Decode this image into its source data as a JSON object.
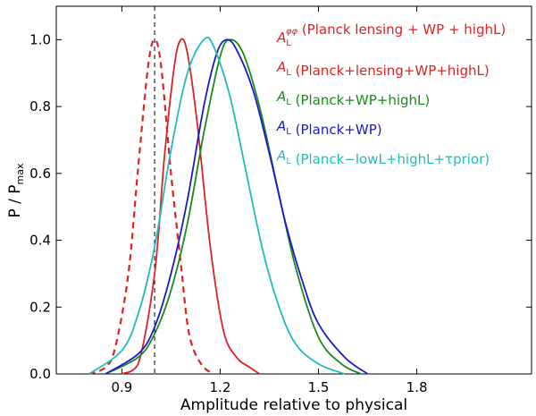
{
  "chart_data": {
    "type": "line",
    "xlabel": "Amplitude relative to physical",
    "ylabel": "P / P",
    "ylabel_sub": "max",
    "xlim": [
      0.7,
      2.15
    ],
    "ylim": [
      0.0,
      1.1
    ],
    "xticks": [
      0.9,
      1.2,
      1.5,
      1.8
    ],
    "xtick_labels": [
      "0.9",
      "1.2",
      "1.5",
      "1.8"
    ],
    "yticks": [
      0.0,
      0.2,
      0.4,
      0.6,
      0.8,
      1.0
    ],
    "ytick_labels": [
      "0.0",
      "0.2",
      "0.4",
      "0.6",
      "0.8",
      "1.0"
    ],
    "reference_line": {
      "x": 1.0,
      "style": "dashed",
      "color": "#000000"
    },
    "legend_position": "top-right",
    "series": [
      {
        "name": "A_L^φφ (Planck lensing + WP + highL)",
        "legend_sup": "φφ",
        "legend_main": " (Planck  lensing + WP + highL)",
        "color": "#dd2222",
        "dashed": true,
        "x": [
          0.8,
          0.85,
          0.88,
          0.92,
          0.95,
          0.98,
          1.0,
          1.02,
          1.05,
          1.08,
          1.1,
          1.12,
          1.15,
          1.18
        ],
        "values": [
          0.0,
          0.02,
          0.08,
          0.3,
          0.62,
          0.92,
          1.0,
          0.92,
          0.6,
          0.33,
          0.15,
          0.07,
          0.02,
          0.0
        ]
      },
      {
        "name": "A_L (Planck+lensing+WP+highL)",
        "legend_sup": "",
        "legend_main": " (Planck+lensing+WP+highL)",
        "color": "#dd2222",
        "dashed": false,
        "x": [
          0.9,
          0.95,
          1.0,
          1.03,
          1.06,
          1.08,
          1.1,
          1.13,
          1.17,
          1.21,
          1.25,
          1.29,
          1.32
        ],
        "values": [
          0.0,
          0.03,
          0.3,
          0.65,
          0.92,
          1.0,
          0.96,
          0.75,
          0.38,
          0.13,
          0.05,
          0.02,
          0.0
        ]
      },
      {
        "name": "A_L (Planck+WP+highL)",
        "legend_sup": "",
        "legend_main": " (Planck+WP+highL)",
        "color": "#1a8a1a",
        "dashed": false,
        "x": [
          0.85,
          0.95,
          1.0,
          1.05,
          1.1,
          1.15,
          1.2,
          1.23,
          1.27,
          1.32,
          1.37,
          1.43,
          1.5,
          1.57,
          1.63
        ],
        "values": [
          0.0,
          0.05,
          0.12,
          0.25,
          0.45,
          0.72,
          0.95,
          1.0,
          0.96,
          0.8,
          0.58,
          0.32,
          0.11,
          0.03,
          0.0
        ]
      },
      {
        "name": "A_L (Planck+WP)",
        "legend_sup": "",
        "legend_main": " (Planck+WP)",
        "color": "#1a1acc",
        "dashed": false,
        "x": [
          0.85,
          0.95,
          1.0,
          1.05,
          1.1,
          1.15,
          1.19,
          1.22,
          1.25,
          1.3,
          1.35,
          1.4,
          1.45,
          1.5,
          1.58,
          1.65
        ],
        "values": [
          0.0,
          0.06,
          0.14,
          0.3,
          0.52,
          0.8,
          0.96,
          1.0,
          0.97,
          0.85,
          0.66,
          0.45,
          0.28,
          0.15,
          0.05,
          0.0
        ]
      },
      {
        "name": "A_L (Planck−lowL+highL+τprior)",
        "legend_sup": "",
        "legend_main": " (Planck−lowL+highL+τprior)",
        "color": "#22bbbb",
        "dashed": false,
        "x": [
          0.8,
          0.9,
          0.95,
          1.0,
          1.05,
          1.1,
          1.15,
          1.18,
          1.23,
          1.28,
          1.33,
          1.38,
          1.43,
          1.5,
          1.58
        ],
        "values": [
          0.0,
          0.07,
          0.18,
          0.38,
          0.67,
          0.9,
          1.0,
          0.98,
          0.83,
          0.6,
          0.37,
          0.2,
          0.09,
          0.03,
          0.0
        ]
      }
    ]
  }
}
